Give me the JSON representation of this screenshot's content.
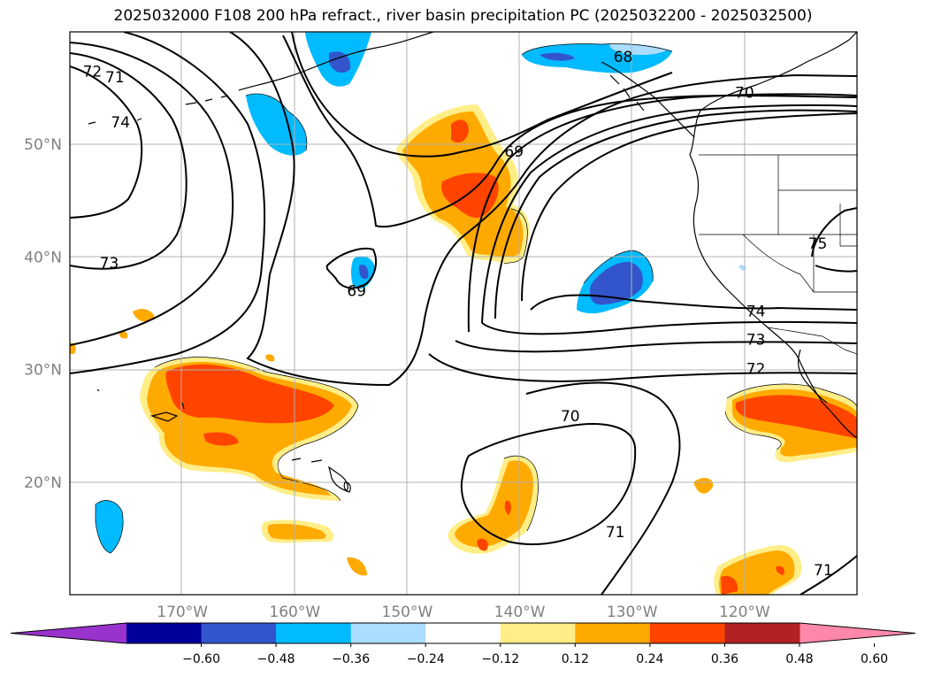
{
  "title": "2025032000 F108 200 hPa refract., river basin precipitation PC (2025032200 - 2025032500)",
  "map": {
    "lon_range": [
      -180,
      -110
    ],
    "lat_range": [
      10,
      60
    ],
    "lon_ticks": [
      {
        "lon": -170,
        "label": "170°W"
      },
      {
        "lon": -160,
        "label": "160°W"
      },
      {
        "lon": -150,
        "label": "150°W"
      },
      {
        "lon": -140,
        "label": "140°W"
      },
      {
        "lon": -130,
        "label": "130°W"
      },
      {
        "lon": -120,
        "label": "120°W"
      }
    ],
    "lat_ticks": [
      {
        "lat": 20,
        "label": "20°N"
      },
      {
        "lat": 30,
        "label": "30°N"
      },
      {
        "lat": 40,
        "label": "40°N"
      },
      {
        "lat": 50,
        "label": "50°N"
      }
    ],
    "gridlines": true,
    "contour_labels": [
      {
        "text": "72",
        "lon": -178,
        "lat": 56.5
      },
      {
        "text": "71",
        "lon": -176,
        "lat": 56.0
      },
      {
        "text": "74",
        "lon": -175.5,
        "lat": 52.0
      },
      {
        "text": "73",
        "lon": -176.5,
        "lat": 39.5
      },
      {
        "text": "69",
        "lon": -154.5,
        "lat": 37.0
      },
      {
        "text": "69",
        "lon": -140.5,
        "lat": 49.4
      },
      {
        "text": "68",
        "lon": -130.8,
        "lat": 57.8
      },
      {
        "text": "70",
        "lon": -120,
        "lat": 54.6
      },
      {
        "text": "74",
        "lon": -119,
        "lat": 35.2
      },
      {
        "text": "73",
        "lon": -119,
        "lat": 32.7
      },
      {
        "text": "72",
        "lon": -119,
        "lat": 30.1
      },
      {
        "text": "70",
        "lon": -135.5,
        "lat": 25.9
      },
      {
        "text": "71",
        "lon": -131.5,
        "lat": 15.6
      },
      {
        "text": "71",
        "lon": -113,
        "lat": 12.2
      },
      {
        "text": "75",
        "lon": -113.5,
        "lat": 41.2
      }
    ]
  },
  "colorbar": {
    "colors": [
      "#9933cc",
      "#000099",
      "#3355cc",
      "#00bbff",
      "#aaddff",
      "#ffffff",
      "#ffee88",
      "#ffaa00",
      "#ff4400",
      "#b22222",
      "#ff88aa"
    ],
    "under_color": "#9933cc",
    "over_color": "#ff88aa",
    "labels": [
      "−0.60",
      "−0.48",
      "−0.36",
      "−0.24",
      "−0.12",
      "0.12",
      "0.24",
      "0.36",
      "0.48",
      "0.60"
    ]
  },
  "legend_colors": {
    "light_yellow": "#ffee88",
    "orange": "#ffaa00",
    "red_orange": "#ff4400",
    "sky_blue": "#00bbff",
    "royal_blue": "#3355cc"
  }
}
